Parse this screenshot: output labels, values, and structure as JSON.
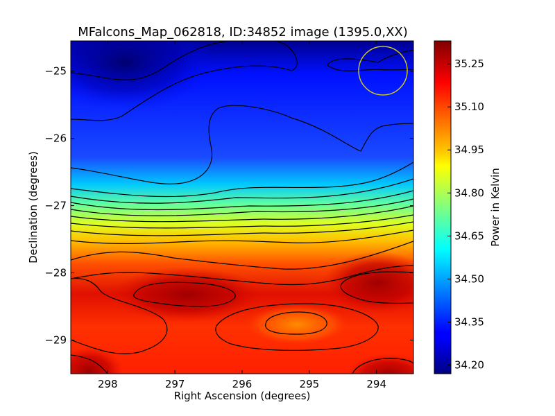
{
  "chart_data": {
    "type": "heatmap",
    "title": "MFalcons_Map_062818, ID:34852 image (1395.0,XX)",
    "xlabel": "Right Ascension (degrees)",
    "ylabel": "Declination (degrees)",
    "xlim": [
      298.55,
      293.45
    ],
    "ylim": [
      -29.5,
      -24.55
    ],
    "x_ticks": [
      298,
      297,
      296,
      295,
      294
    ],
    "x_tick_labels": [
      "298",
      "297",
      "296",
      "295",
      "294"
    ],
    "y_ticks": [
      -25,
      -26,
      -27,
      -28,
      -29
    ],
    "y_tick_labels": [
      "−25",
      "−26",
      "−27",
      "−28",
      "−29"
    ],
    "colorbar": {
      "label": "Power in Kelvin",
      "range": [
        34.17,
        35.33
      ],
      "ticks": [
        35.25,
        35.1,
        34.95,
        34.8,
        34.65,
        34.5,
        34.35,
        34.2
      ],
      "tick_labels": [
        "35.25",
        "35.10",
        "34.95",
        "34.80",
        "34.65",
        "34.50",
        "34.35",
        "34.20"
      ],
      "colormap": "jet"
    },
    "grid": false,
    "marker": {
      "shape": "circle",
      "ra": 293.95,
      "dec": -25.0,
      "color": "#c8c820"
    }
  }
}
